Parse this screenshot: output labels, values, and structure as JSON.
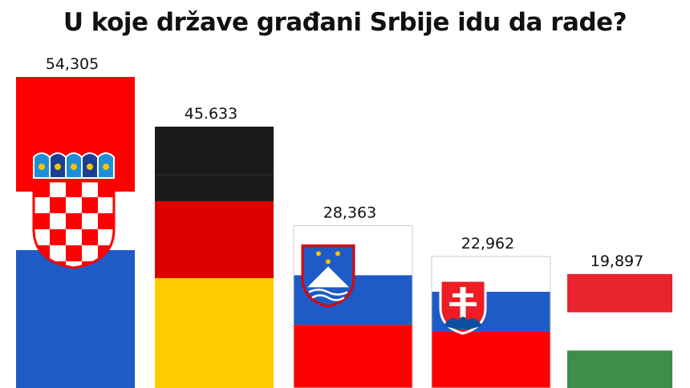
{
  "title": "U koje države građani Srbije idu da rade?",
  "chart_data": {
    "type": "bar",
    "title": "U koje države građani Srbije idu da rade?",
    "categories": [
      "",
      "",
      "",
      "",
      ""
    ],
    "category_flags": [
      "croatia-flag",
      "germany-flag",
      "slovenia-flag",
      "slovakia-flag",
      "hungary-flag"
    ],
    "values": [
      54305,
      45633,
      28363,
      22962,
      19897
    ],
    "value_labels": [
      "54,305",
      "45.633",
      "28,363",
      "22,962",
      "19,897"
    ],
    "xlabel": "",
    "ylabel": "",
    "grid": false,
    "legend": "none",
    "colors": {
      "croatia": [
        "#ff0000",
        "#ffffff",
        "#1e5bc6"
      ],
      "germany": [
        "#1a1a1a",
        "#dd0000",
        "#ffcc00"
      ],
      "slovenia": [
        "#ffffff",
        "#1e5bc6",
        "#ff0000"
      ],
      "slovakia": [
        "#ffffff",
        "#1e5bc6",
        "#ff0000"
      ],
      "hungary": [
        "#e8232e",
        "#ffffff",
        "#3f8d48"
      ]
    }
  }
}
